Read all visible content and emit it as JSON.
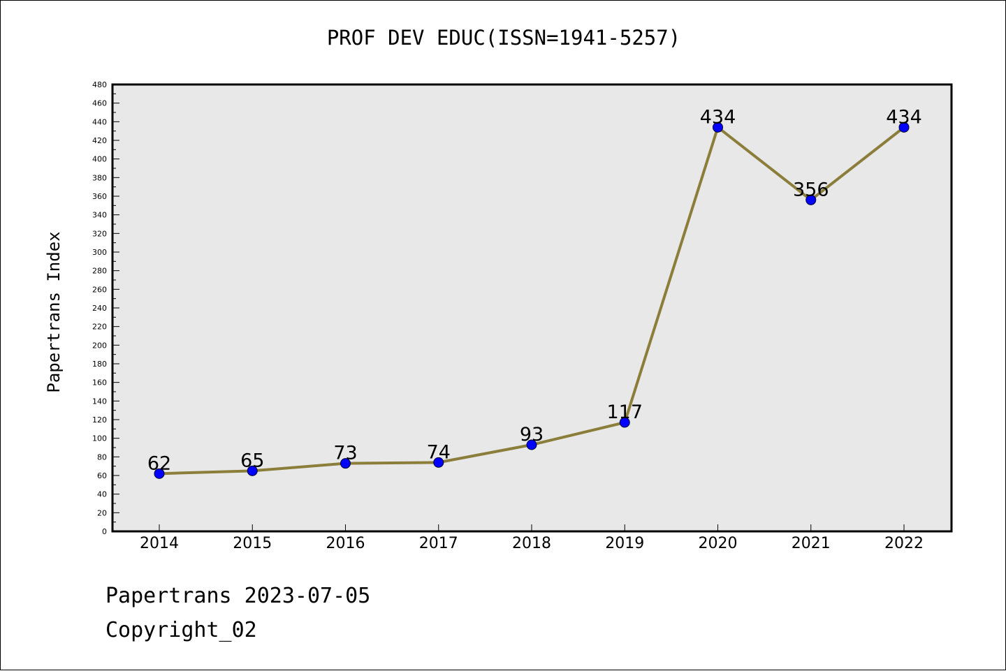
{
  "chart_data": {
    "type": "line",
    "title": "PROF DEV EDUC(ISSN=1941-5257)",
    "ylabel": "Papertrans Index",
    "xlabel": "",
    "categories": [
      "2014",
      "2015",
      "2016",
      "2017",
      "2018",
      "2019",
      "2020",
      "2021",
      "2022"
    ],
    "values": [
      62,
      65,
      73,
      74,
      93,
      117,
      434,
      356,
      434
    ],
    "data_labels": [
      "62",
      "65",
      "73",
      "74",
      "93",
      "117",
      "434",
      "356",
      "434"
    ],
    "ylim": [
      0,
      480
    ],
    "yticks": [
      0,
      20,
      40,
      60,
      80,
      100,
      120,
      140,
      160,
      180,
      200,
      220,
      240,
      260,
      280,
      300,
      320,
      340,
      360,
      380,
      400,
      420,
      440,
      460,
      480
    ],
    "grid": false,
    "colors": {
      "line": "#8B7D3A",
      "marker": "#0000FF",
      "plot_background": "#E8E8E8",
      "axes_border": "#000000"
    }
  },
  "footer": {
    "line1": "Papertrans 2023-07-05",
    "line2": "Copyright_02"
  }
}
